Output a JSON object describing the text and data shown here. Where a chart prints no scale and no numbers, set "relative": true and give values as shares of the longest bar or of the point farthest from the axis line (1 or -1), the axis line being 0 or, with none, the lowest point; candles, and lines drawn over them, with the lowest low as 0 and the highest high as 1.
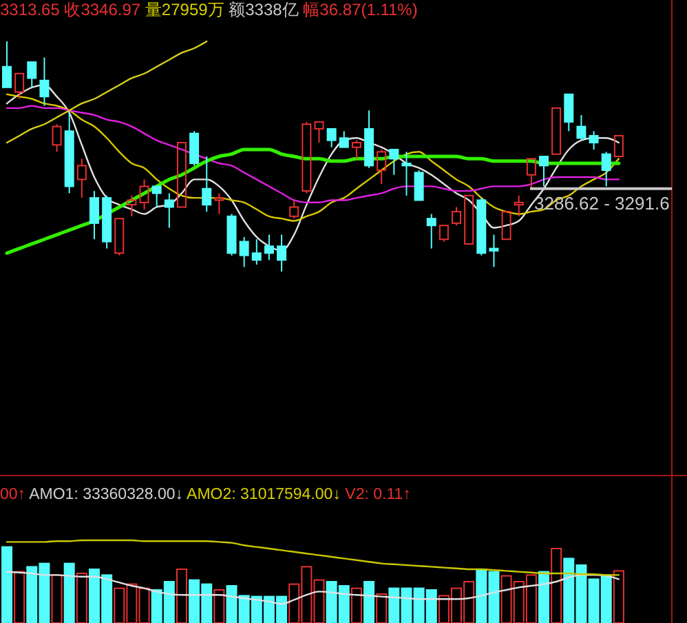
{
  "chart_data": [
    {
      "type": "candlestick",
      "relative": true,
      "annotations": [
        "3313.65 收3346.97",
        "量27959万",
        "额3338亿",
        "幅36.87(1.11%)",
        {
          "text": "3286.62 - 3291.6",
          "y": 0.36
        }
      ],
      "categories": [
        null,
        null,
        null,
        null,
        null,
        null,
        null,
        null,
        null,
        null,
        null,
        null,
        null,
        null,
        null,
        null,
        null,
        null,
        null,
        null,
        null,
        null,
        null,
        null,
        null,
        null,
        null,
        null,
        null,
        null,
        null,
        null,
        null,
        null,
        null,
        null,
        null,
        null,
        null,
        null,
        null,
        null,
        null,
        null,
        null,
        null,
        null,
        null,
        null,
        null
      ],
      "ohlc": [
        [
          0.89,
          1.0,
          0.8,
          0.8
        ],
        [
          0.78,
          0.86,
          0.75,
          0.86
        ],
        [
          0.91,
          0.91,
          0.8,
          0.84
        ],
        [
          0.83,
          0.93,
          0.72,
          0.76
        ],
        [
          0.55,
          0.64,
          0.52,
          0.63
        ],
        [
          0.61,
          0.69,
          0.34,
          0.37
        ],
        [
          0.4,
          0.49,
          0.32,
          0.46
        ],
        [
          0.32,
          0.35,
          0.14,
          0.21
        ],
        [
          0.32,
          0.33,
          0.1,
          0.13
        ],
        [
          0.08,
          0.23,
          0.07,
          0.23
        ],
        [
          0.29,
          0.33,
          0.24,
          0.31
        ],
        [
          0.3,
          0.4,
          0.27,
          0.37
        ],
        [
          0.37,
          0.37,
          0.28,
          0.34
        ],
        [
          0.31,
          0.34,
          0.19,
          0.28
        ],
        [
          0.28,
          0.56,
          0.28,
          0.56
        ],
        [
          0.6,
          0.61,
          0.46,
          0.47
        ],
        [
          0.36,
          0.5,
          0.26,
          0.29
        ],
        [
          0.31,
          0.34,
          0.25,
          0.32
        ],
        [
          0.24,
          0.25,
          0.07,
          0.08
        ],
        [
          0.13,
          0.15,
          0.02,
          0.07
        ],
        [
          0.08,
          0.14,
          0.03,
          0.05
        ],
        [
          0.11,
          0.16,
          0.05,
          0.08
        ],
        [
          0.11,
          0.16,
          0.0,
          0.05
        ],
        [
          0.24,
          0.31,
          0.23,
          0.28
        ],
        [
          0.35,
          0.65,
          0.34,
          0.64
        ],
        [
          0.62,
          0.65,
          0.56,
          0.65
        ],
        [
          0.62,
          0.62,
          0.54,
          0.57
        ],
        [
          0.58,
          0.61,
          0.54,
          0.54
        ],
        [
          0.54,
          0.57,
          0.49,
          0.56
        ],
        [
          0.62,
          0.7,
          0.45,
          0.46
        ],
        [
          0.44,
          0.53,
          0.38,
          0.52
        ],
        [
          0.53,
          0.53,
          0.42,
          0.49
        ],
        [
          0.47,
          0.52,
          0.33,
          0.46
        ],
        [
          0.43,
          0.44,
          0.31,
          0.31
        ],
        [
          0.23,
          0.25,
          0.1,
          0.2
        ],
        [
          0.14,
          0.2,
          0.13,
          0.2
        ],
        [
          0.21,
          0.28,
          0.2,
          0.26
        ],
        [
          0.12,
          0.33,
          0.12,
          0.33
        ],
        [
          0.31,
          0.32,
          0.07,
          0.08
        ],
        [
          0.1,
          0.16,
          0.02,
          0.09
        ],
        [
          0.14,
          0.26,
          0.14,
          0.26
        ],
        [
          0.29,
          0.33,
          0.24,
          0.3
        ],
        [
          0.42,
          0.49,
          0.36,
          0.49
        ],
        [
          0.5,
          0.5,
          0.37,
          0.46
        ],
        [
          0.51,
          0.71,
          0.51,
          0.71
        ],
        [
          0.77,
          0.77,
          0.61,
          0.65
        ],
        [
          0.63,
          0.68,
          0.57,
          0.58
        ],
        [
          0.59,
          0.61,
          0.53,
          0.56
        ],
        [
          0.51,
          0.52,
          0.37,
          0.44
        ],
        [
          0.5,
          0.59,
          0.5,
          0.59
        ]
      ],
      "series": [
        {
          "type": "line",
          "color": "#e0e0e0",
          "values": [
            0.73,
            0.77,
            0.8,
            0.81,
            0.76,
            0.69,
            0.55,
            0.41,
            0.32,
            0.29,
            0.27,
            0.25,
            0.28,
            0.29,
            0.34,
            0.4,
            0.4,
            0.37,
            0.31,
            0.22,
            0.15,
            0.11,
            0.09,
            0.16,
            0.29,
            0.41,
            0.51,
            0.57,
            0.58,
            0.56,
            0.54,
            0.51,
            0.47,
            0.45,
            0.42,
            0.38,
            0.34,
            0.31,
            0.25,
            0.19,
            0.2,
            0.22,
            0.29,
            0.36,
            0.45,
            0.53,
            0.57,
            0.58,
            0.58,
            0.56
          ]
        },
        {
          "type": "line",
          "color": "#d8c800",
          "values": [
            0.77,
            0.76,
            0.75,
            0.73,
            0.72,
            0.7,
            0.66,
            0.63,
            0.58,
            0.52,
            0.47,
            0.45,
            0.4,
            0.36,
            0.33,
            0.32,
            0.32,
            0.32,
            0.31,
            0.3,
            0.27,
            0.24,
            0.23,
            0.22,
            0.24,
            0.26,
            0.3,
            0.32,
            0.36,
            0.4,
            0.44,
            0.48,
            0.51,
            0.52,
            0.48,
            0.44,
            0.4,
            0.37,
            0.32,
            0.28,
            0.26,
            0.25,
            0.26,
            0.27,
            0.31,
            0.33,
            0.37,
            0.4,
            0.43,
            0.49
          ]
        },
        {
          "type": "line",
          "color": "#e020e0",
          "values": [
            0.71,
            0.71,
            0.72,
            0.71,
            0.71,
            0.7,
            0.69,
            0.68,
            0.66,
            0.65,
            0.63,
            0.6,
            0.57,
            0.55,
            0.53,
            0.51,
            0.49,
            0.47,
            0.46,
            0.43,
            0.4,
            0.37,
            0.34,
            0.31,
            0.3,
            0.3,
            0.31,
            0.31,
            0.32,
            0.33,
            0.34,
            0.36,
            0.37,
            0.37,
            0.37,
            0.36,
            0.35,
            0.35,
            0.36,
            0.37,
            0.37,
            0.37,
            0.38,
            0.4,
            0.41,
            0.41,
            0.41,
            0.41,
            0.4,
            0.4
          ]
        },
        {
          "type": "line",
          "color": "#33ee00",
          "values": [
            0.08,
            0.1,
            0.12,
            0.14,
            0.16,
            0.18,
            0.2,
            0.22,
            0.25,
            0.28,
            0.31,
            0.34,
            0.37,
            0.4,
            0.42,
            0.45,
            0.48,
            0.5,
            0.51,
            0.53,
            0.53,
            0.53,
            0.51,
            0.5,
            0.49,
            0.49,
            0.48,
            0.48,
            0.49,
            0.49,
            0.49,
            0.5,
            0.5,
            0.5,
            0.5,
            0.5,
            0.5,
            0.49,
            0.49,
            0.48,
            0.48,
            0.48,
            0.48,
            0.47,
            0.47,
            0.47,
            0.47,
            0.47,
            0.47,
            0.47
          ]
        },
        {
          "type": "line",
          "color": "#d8d020",
          "values": [
            0.56,
            0.59,
            0.62,
            0.64,
            0.67,
            0.7,
            0.73,
            0.75,
            0.78,
            0.81,
            0.84,
            0.86,
            0.89,
            0.92,
            0.95,
            0.97,
            1.0,
            null,
            null,
            null,
            null,
            null,
            null,
            null,
            null,
            null,
            null,
            null,
            null,
            null,
            null,
            null,
            null,
            null,
            null,
            null,
            null,
            null,
            null,
            null,
            null,
            null,
            null,
            null,
            null,
            null,
            null,
            null,
            null,
            null
          ]
        }
      ],
      "ref_lines": [
        {
          "axis": "y",
          "value": 0.36,
          "color": "#c8c8c8"
        }
      ]
    },
    {
      "type": "bar",
      "relative": true,
      "annotations": [
        "00↑",
        "AMO1: 33360328.00↓",
        "AMO2: 31017594.00↓",
        "V2: 0.11↑"
      ],
      "categories": [
        null,
        null,
        null,
        null,
        null,
        null,
        null,
        null,
        null,
        null,
        null,
        null,
        null,
        null,
        null,
        null,
        null,
        null,
        null,
        null,
        null,
        null,
        null,
        null,
        null,
        null,
        null,
        null,
        null,
        null,
        null,
        null,
        null,
        null,
        null,
        null,
        null,
        null,
        null,
        null,
        null,
        null,
        null,
        null,
        null,
        null,
        null,
        null,
        null,
        null
      ],
      "series": [
        {
          "type": "bar",
          "values": [
            0.92,
            0.62,
            0.68,
            0.72,
            0.58,
            0.72,
            0.6,
            0.65,
            0.58,
            0.42,
            0.47,
            0.42,
            0.4,
            0.5,
            0.65,
            0.52,
            0.47,
            0.4,
            0.45,
            0.33,
            0.32,
            0.32,
            0.32,
            0.47,
            0.68,
            0.52,
            0.5,
            0.45,
            0.42,
            0.5,
            0.35,
            0.42,
            0.42,
            0.42,
            0.4,
            0.33,
            0.42,
            0.5,
            0.65,
            0.62,
            0.57,
            0.5,
            0.58,
            0.62,
            0.9,
            0.78,
            0.7,
            0.53,
            0.58,
            0.63
          ],
          "colors": [
            "#54fcfc",
            "#e83030",
            "#54fcfc",
            "#54fcfc",
            "#e83030",
            "#54fcfc",
            "#e83030",
            "#54fcfc",
            "#54fcfc",
            "#e83030",
            "#e83030",
            "#e83030",
            "#54fcfc",
            "#54fcfc",
            "#e83030",
            "#54fcfc",
            "#54fcfc",
            "#e83030",
            "#54fcfc",
            "#54fcfc",
            "#54fcfc",
            "#54fcfc",
            "#54fcfc",
            "#e83030",
            "#e83030",
            "#e83030",
            "#54fcfc",
            "#54fcfc",
            "#e83030",
            "#54fcfc",
            "#e83030",
            "#54fcfc",
            "#54fcfc",
            "#54fcfc",
            "#54fcfc",
            "#e83030",
            "#e83030",
            "#e83030",
            "#54fcfc",
            "#54fcfc",
            "#e83030",
            "#e83030",
            "#e83030",
            "#54fcfc",
            "#e83030",
            "#54fcfc",
            "#54fcfc",
            "#54fcfc",
            "#54fcfc",
            "#e83030"
          ]
        },
        {
          "type": "line",
          "color": "#e0e0e0",
          "values": [
            0.62,
            0.61,
            0.6,
            0.58,
            0.58,
            0.57,
            0.56,
            0.56,
            0.53,
            0.49,
            0.45,
            0.42,
            0.38,
            0.35,
            0.34,
            0.34,
            0.34,
            0.34,
            0.32,
            0.3,
            0.28,
            0.26,
            0.23,
            0.28,
            0.34,
            0.38,
            0.37,
            0.35,
            0.34,
            0.33,
            0.32,
            0.31,
            0.3,
            0.29,
            0.29,
            0.29,
            0.29,
            0.3,
            0.33,
            0.37,
            0.4,
            0.43,
            0.45,
            0.47,
            0.5,
            0.55,
            0.58,
            0.58,
            0.57,
            0.53
          ]
        },
        {
          "type": "line",
          "color": "#c8c800",
          "values": [
            0.98,
            0.98,
            0.98,
            0.98,
            0.99,
            0.99,
            1.0,
            1.0,
            1.0,
            1.0,
            1.0,
            0.99,
            0.99,
            0.99,
            0.99,
            0.99,
            0.99,
            0.98,
            0.97,
            0.94,
            0.92,
            0.9,
            0.88,
            0.86,
            0.84,
            0.82,
            0.8,
            0.78,
            0.76,
            0.74,
            0.72,
            0.71,
            0.7,
            0.69,
            0.68,
            0.67,
            0.66,
            0.65,
            0.65,
            0.64,
            0.63,
            0.62,
            0.61,
            0.6,
            0.6,
            0.6,
            0.59,
            0.59,
            0.58,
            0.58
          ]
        }
      ]
    }
  ]
}
